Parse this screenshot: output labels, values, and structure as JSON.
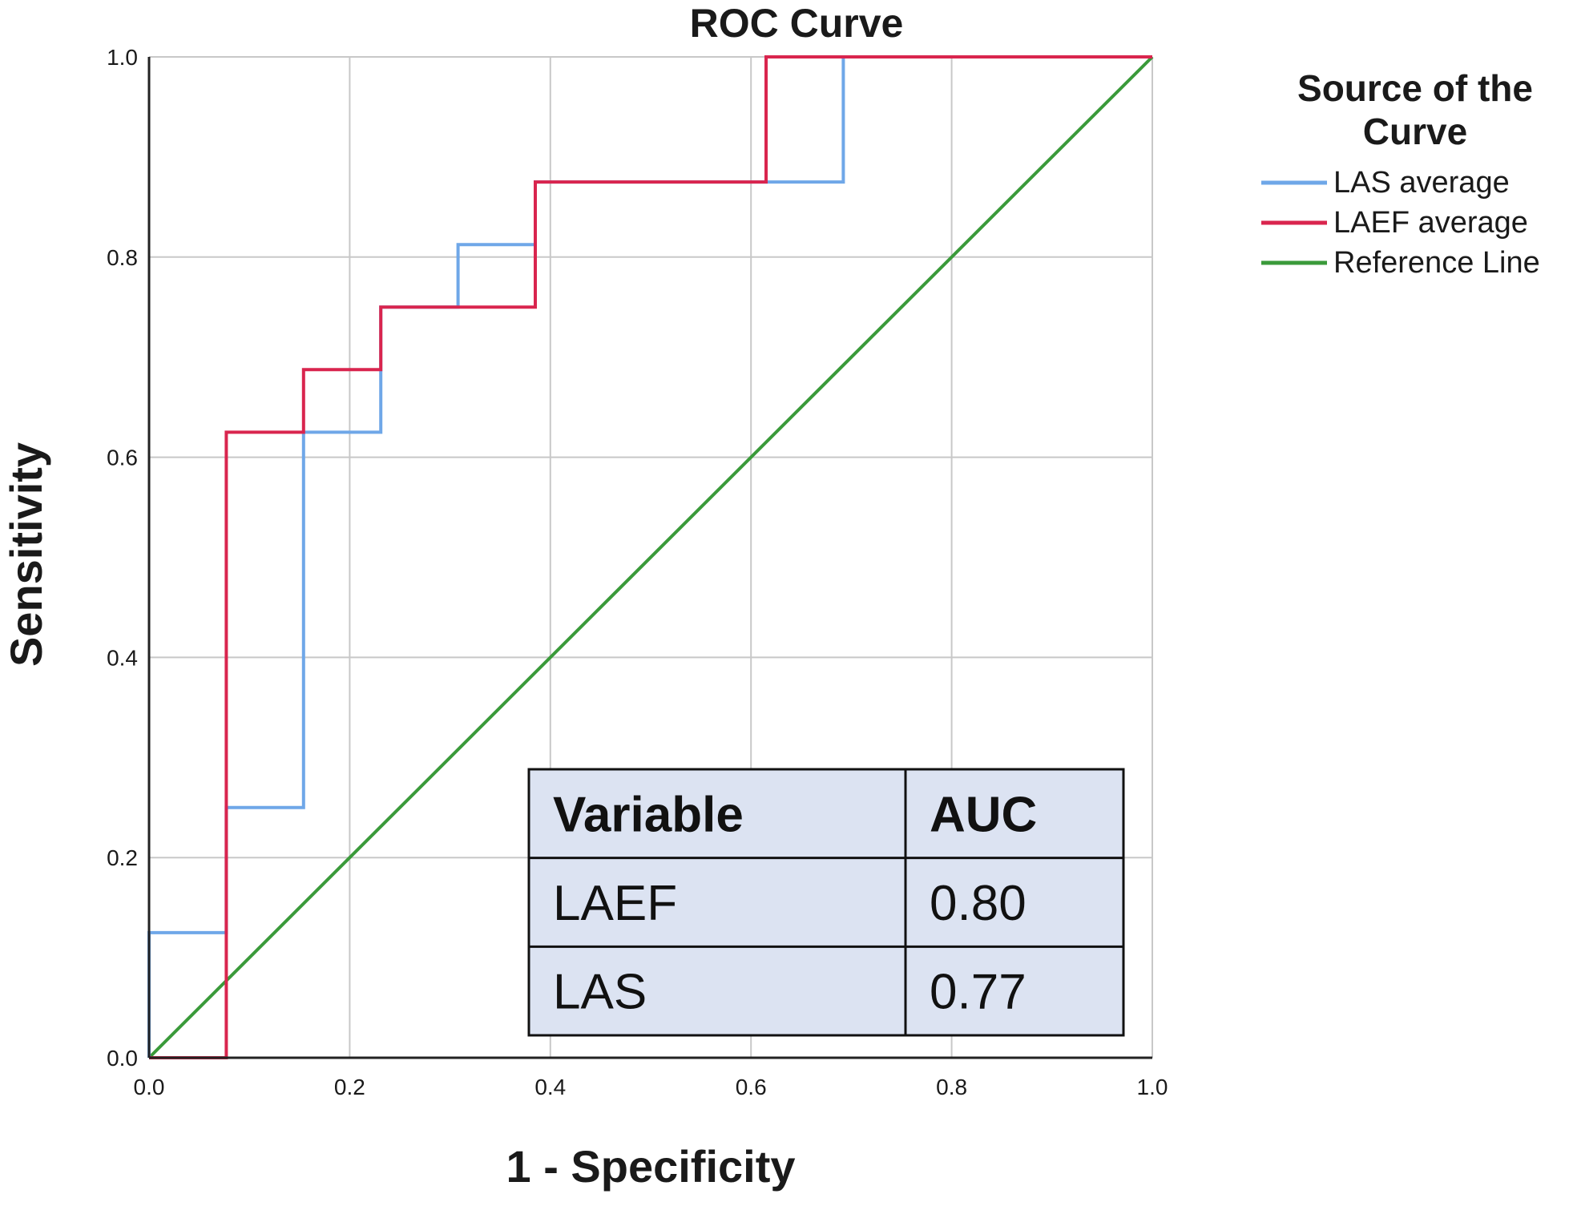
{
  "chart_data": {
    "type": "line",
    "title": "ROC Curve",
    "xlabel": "1 - Specificity",
    "ylabel": "Sensitivity",
    "xlim": [
      0,
      1
    ],
    "ylim": [
      0,
      1
    ],
    "xticks": [
      "0.0",
      "0.2",
      "0.4",
      "0.6",
      "0.8",
      "1.0"
    ],
    "yticks": [
      "0.0",
      "0.2",
      "0.4",
      "0.6",
      "0.8",
      "1.0"
    ],
    "grid": true,
    "legend": {
      "title": "Source of the Curve",
      "title_lines": [
        "Source of the",
        "Curve"
      ],
      "placement": "right"
    },
    "series": [
      {
        "name": "LAS average",
        "color": "#6fa7e8",
        "x": [
          0,
          0,
          0.077,
          0.077,
          0.154,
          0.154,
          0.231,
          0.231,
          0.308,
          0.308,
          0.385,
          0.385,
          0.692,
          0.692,
          1.0
        ],
        "y": [
          0,
          0.125,
          0.125,
          0.25,
          0.25,
          0.625,
          0.625,
          0.75,
          0.75,
          0.8125,
          0.8125,
          0.875,
          0.875,
          1.0,
          1.0
        ]
      },
      {
        "name": "LAEF average",
        "color": "#d9254e",
        "x": [
          0,
          0.077,
          0.077,
          0.154,
          0.154,
          0.231,
          0.231,
          0.385,
          0.385,
          0.615,
          0.615,
          1.0
        ],
        "y": [
          0,
          0,
          0.625,
          0.625,
          0.6875,
          0.6875,
          0.75,
          0.75,
          0.875,
          0.875,
          1.0,
          1.0
        ]
      },
      {
        "name": "Reference Line",
        "color": "#3a9a3a",
        "x": [
          0,
          1
        ],
        "y": [
          0,
          1
        ]
      }
    ],
    "annotation_table": {
      "headers": [
        "Variable",
        "AUC"
      ],
      "rows": [
        [
          "LAEF",
          "0.80"
        ],
        [
          "LAS",
          "0.77"
        ]
      ],
      "fill": "#dce3f2"
    }
  }
}
